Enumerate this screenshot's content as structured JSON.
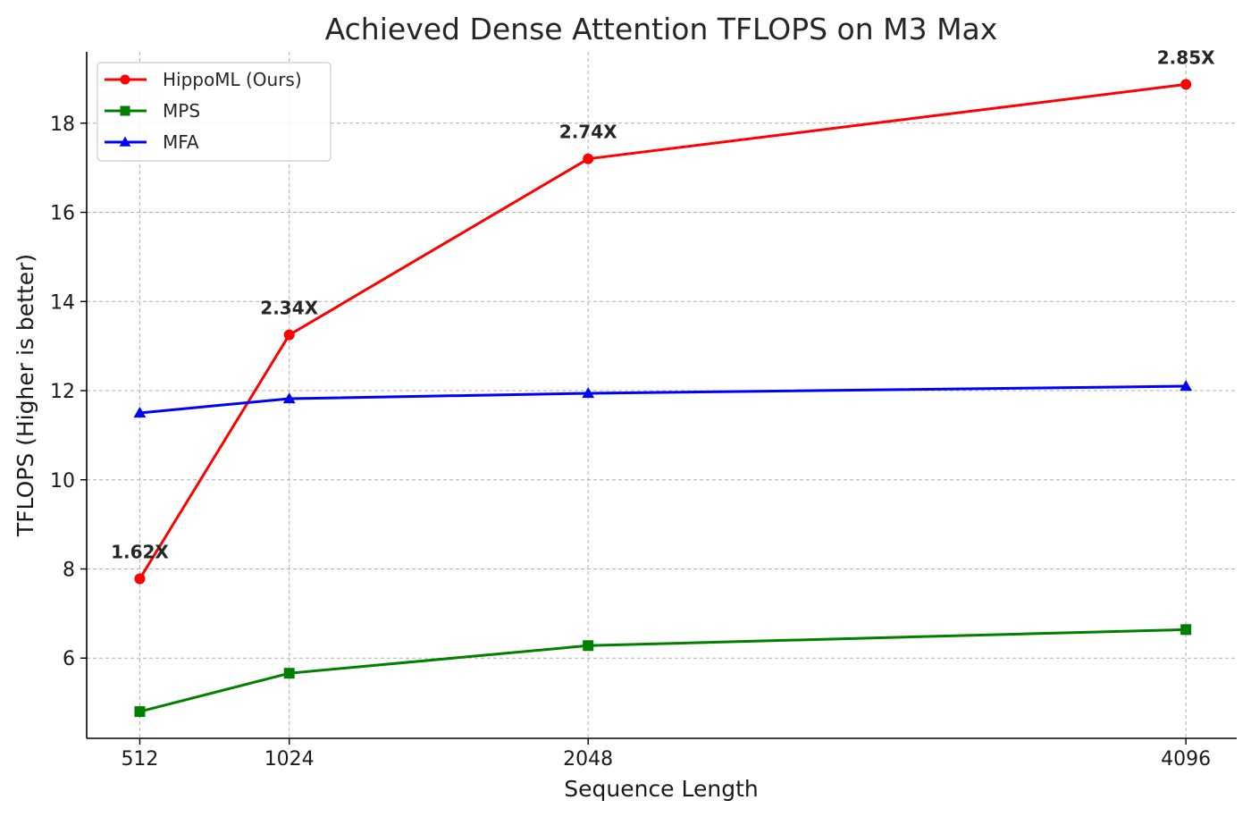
{
  "chart_data": {
    "type": "line",
    "title": "Achieved Dense Attention TFLOPS on M3 Max",
    "xlabel": "Sequence Length",
    "ylabel": "TFLOPS (Higher is better)",
    "x": [
      512,
      1024,
      2048,
      4096
    ],
    "x_tick_labels": [
      "512",
      "1024",
      "2048",
      "4096"
    ],
    "y_ticks": [
      6,
      8,
      10,
      12,
      14,
      16,
      18
    ],
    "y_tick_labels": [
      "6",
      "8",
      "10",
      "12",
      "14",
      "16",
      "18"
    ],
    "xlim": [
      330,
      4270
    ],
    "ylim": [
      4.2,
      19.6
    ],
    "grid": true,
    "legend_position": "top-left",
    "series": [
      {
        "name": "HippoML (Ours)",
        "color": "#ff0000",
        "marker": "circle",
        "values": [
          7.78,
          13.25,
          17.2,
          18.87
        ]
      },
      {
        "name": "MPS",
        "color": "#008000",
        "marker": "square",
        "values": [
          4.8,
          5.66,
          6.28,
          6.64
        ]
      },
      {
        "name": "MFA",
        "color": "#0000ff",
        "marker": "triangle",
        "values": [
          11.5,
          11.82,
          11.94,
          12.1
        ]
      }
    ],
    "annotations": [
      {
        "text": "1.62X",
        "x": 512,
        "y": 7.78
      },
      {
        "text": "2.34X",
        "x": 1024,
        "y": 13.25
      },
      {
        "text": "2.74X",
        "x": 2048,
        "y": 17.2
      },
      {
        "text": "2.85X",
        "x": 4096,
        "y": 18.87
      }
    ]
  }
}
